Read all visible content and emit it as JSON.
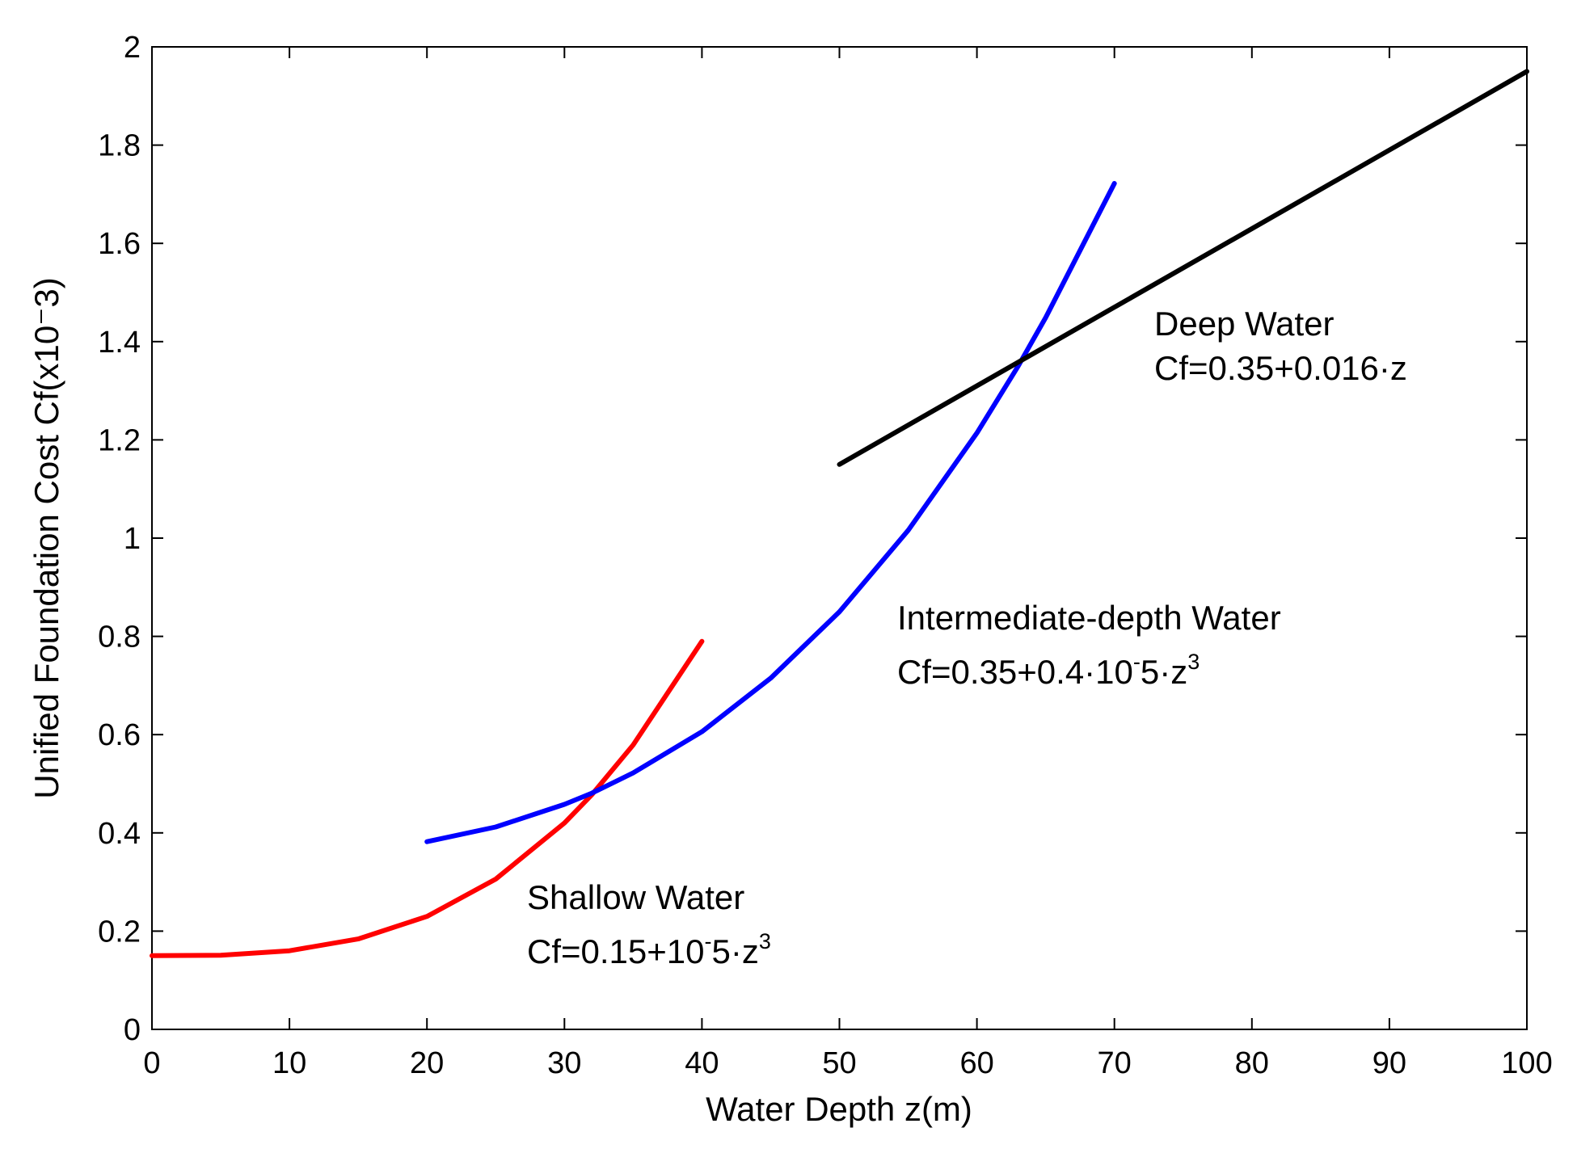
{
  "chart_data": {
    "type": "line",
    "title": "",
    "xlabel": "Water Depth z(m)",
    "ylabel": "Unified Foundation Cost Cf(x10⁻3)",
    "xlim": [
      0,
      100
    ],
    "ylim": [
      0,
      2
    ],
    "xticks": [
      0,
      10,
      20,
      30,
      40,
      50,
      60,
      70,
      80,
      90,
      100
    ],
    "yticks": [
      0,
      0.2,
      0.4,
      0.6,
      0.8,
      1,
      1.2,
      1.4,
      1.6,
      1.8,
      2
    ],
    "xtick_labels": [
      "0",
      "10",
      "20",
      "30",
      "40",
      "50",
      "60",
      "70",
      "80",
      "90",
      "100"
    ],
    "ytick_labels": [
      "0",
      "0.2",
      "0.4",
      "0.6",
      "0.8",
      "1",
      "1.2",
      "1.4",
      "1.6",
      "1.8",
      "2"
    ],
    "grid": false,
    "series": [
      {
        "name": "Shallow Water",
        "color": "#ff0000",
        "x": [
          0,
          5,
          10,
          15,
          20,
          25,
          30,
          32,
          35,
          40
        ],
        "y": [
          0.15,
          0.151,
          0.16,
          0.184,
          0.23,
          0.306,
          0.42,
          0.478,
          0.579,
          0.79
        ]
      },
      {
        "name": "Intermediate-depth Water",
        "color": "#0000ff",
        "x": [
          20,
          25,
          30,
          32,
          35,
          40,
          45,
          50,
          55,
          60,
          63,
          65,
          70
        ],
        "y": [
          0.382,
          0.412,
          0.458,
          0.481,
          0.522,
          0.606,
          0.715,
          0.85,
          1.016,
          1.214,
          1.35,
          1.449,
          1.722
        ]
      },
      {
        "name": "Deep Water",
        "color": "#000000",
        "x": [
          50,
          60,
          70,
          80,
          90,
          100
        ],
        "y": [
          1.15,
          1.31,
          1.47,
          1.63,
          1.79,
          1.95
        ]
      }
    ],
    "annotations": [
      {
        "id": "shallow",
        "line1": "Shallow Water",
        "line2_prefix": "Cf=0.15+10",
        "sup1": "-",
        "mid": "5·z",
        "sup2": "3"
      },
      {
        "id": "intermediate",
        "line1": "Intermediate-depth Water",
        "line2_prefix": "Cf=0.35+0.4·10",
        "sup1": "-",
        "mid": "5·z",
        "sup2": "3"
      },
      {
        "id": "deep",
        "line1": "Deep Water",
        "line2": "Cf=0.35+0.016·z"
      }
    ]
  }
}
